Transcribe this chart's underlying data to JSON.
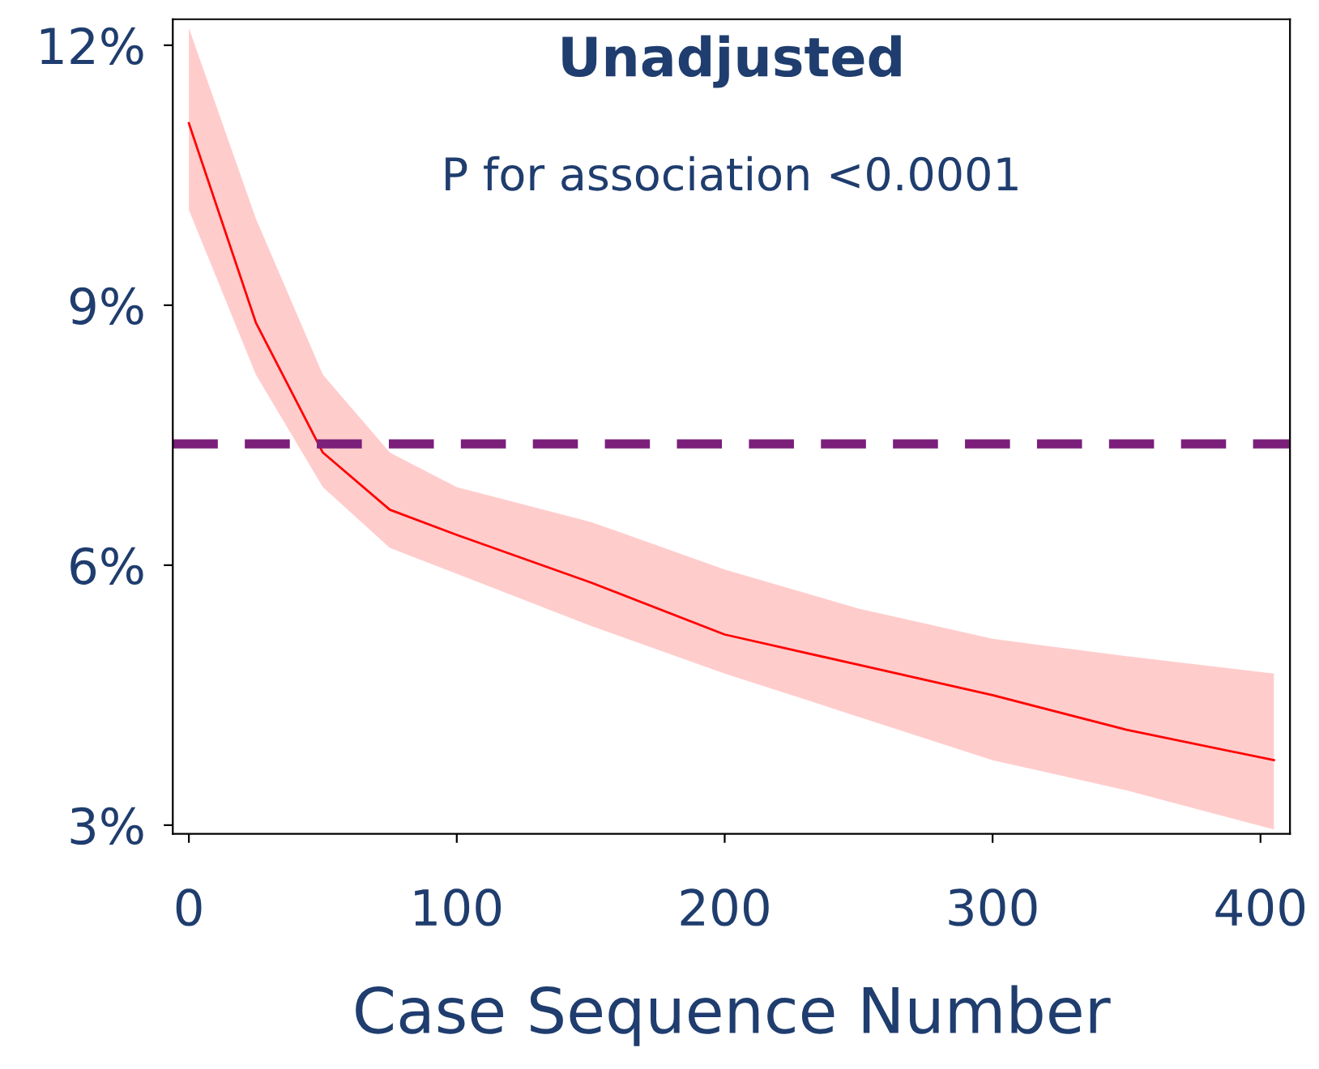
{
  "chart_data": {
    "type": "line",
    "title": "Unadjusted",
    "subtitle": "P for association <0.0001",
    "xlabel": "Case Sequence Number",
    "xlim": [
      -6,
      411
    ],
    "xticks": [
      0,
      100,
      200,
      300,
      400
    ],
    "ylim": [
      2.9,
      12.3
    ],
    "yticks": [
      {
        "value": 3,
        "label": "3%"
      },
      {
        "value": 6,
        "label": "6%"
      },
      {
        "value": 9,
        "label": "9%"
      },
      {
        "value": 12,
        "label": "12%"
      }
    ],
    "grid": false,
    "legend": false,
    "series": [
      {
        "color": "#ff0000",
        "x": [
          0,
          25,
          50,
          75,
          100,
          150,
          200,
          250,
          300,
          350,
          405
        ],
        "values": [
          11.1,
          8.8,
          7.3,
          6.64,
          6.35,
          5.8,
          5.2,
          4.85,
          4.5,
          4.1,
          3.75
        ],
        "upper": [
          12.2,
          10.0,
          8.2,
          7.3,
          6.9,
          6.5,
          5.95,
          5.5,
          5.15,
          4.95,
          4.75
        ],
        "lower": [
          10.1,
          8.2,
          6.9,
          6.2,
          5.9,
          5.3,
          4.75,
          4.25,
          3.75,
          3.4,
          2.95
        ]
      }
    ],
    "ref_lines": [
      {
        "axis": "y",
        "value": 7.4,
        "color": "#7b1f7a",
        "line_style": "dashed"
      }
    ]
  }
}
